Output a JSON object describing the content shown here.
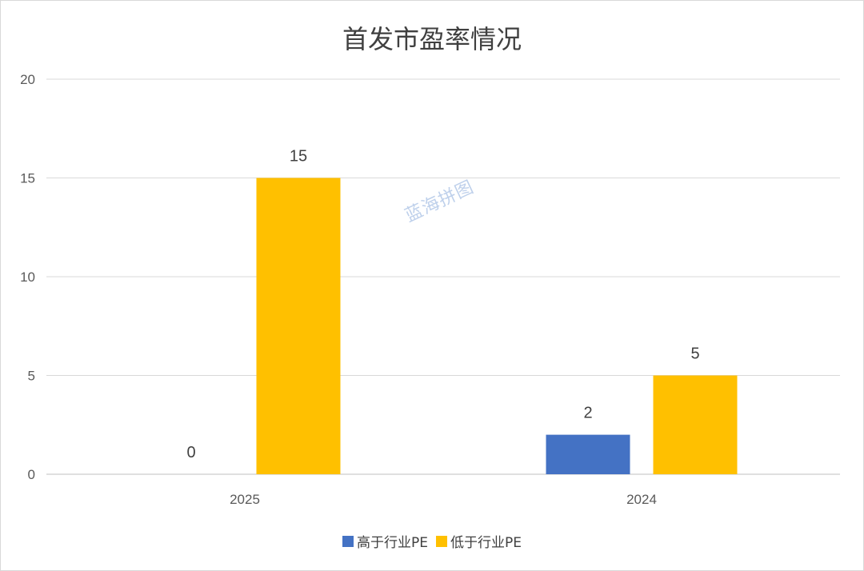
{
  "chart_data": {
    "type": "bar",
    "title": "首发市盈率情况",
    "categories": [
      "2025",
      "2024"
    ],
    "series": [
      {
        "name": "高于行业PE",
        "values": [
          0,
          2
        ],
        "color": "#4472c4"
      },
      {
        "name": "低于行业PE",
        "values": [
          15,
          5
        ],
        "color": "#ffc000"
      }
    ],
    "ylim": [
      0,
      20
    ],
    "yticks": [
      0,
      5,
      10,
      15,
      20
    ],
    "grid": true,
    "legend": "bottom"
  },
  "watermark": "蓝海拼图"
}
